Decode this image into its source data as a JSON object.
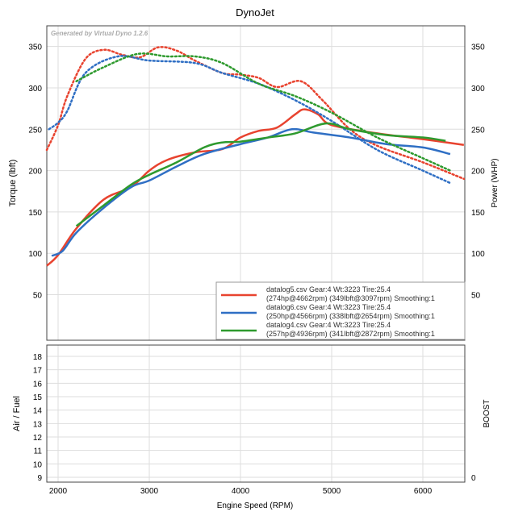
{
  "chart_data": [
    {
      "type": "line",
      "title": "DynoJet",
      "watermark": "Generated by Virtual Dyno 1.2.6",
      "xlabel": "Engine Speed (RPM)",
      "ylabel": "Torque (lbft)",
      "y2label": "Power (WHP)",
      "xlim": [
        1876,
        6460
      ],
      "ylim": [
        -5,
        375
      ],
      "xticks": [
        2000,
        3000,
        4000,
        5000,
        6000
      ],
      "yticks": [
        50,
        100,
        150,
        200,
        250,
        300,
        350
      ],
      "grid": true,
      "legend_placement": "bottom-right",
      "series": [
        {
          "name": "datalog5.csv Gear:4 Wt:3223 Tire:25.4",
          "detail": "(274hp@4662rpm) (349lbft@3097rpm) Smoothing:1",
          "color": "#e8432f",
          "power": {
            "x": [
              1876,
              2000,
              2200,
              2500,
              2800,
              3000,
              3200,
              3500,
              3800,
              4000,
              4200,
              4400,
              4600,
              4700,
              4850,
              5000,
              5500,
              6000,
              6450
            ],
            "y": [
              85,
              98,
              130,
              165,
              180,
              200,
              213,
              222,
              226,
              240,
              248,
              252,
              268,
              274,
              268,
              255,
              245,
              238,
              231
            ]
          },
          "torque": {
            "x": [
              1876,
              2000,
              2100,
              2300,
              2500,
              2700,
              2900,
              3097,
              3300,
              3500,
              3800,
              4000,
              4200,
              4400,
              4662,
              4900,
              5200,
              5500,
              6000,
              6450
            ],
            "y": [
              225,
              255,
              290,
              335,
              346,
              340,
              337,
              349,
              345,
              333,
              318,
              316,
              312,
              301,
              308,
              285,
              250,
              230,
              210,
              190
            ]
          }
        },
        {
          "name": "datalog6.csv Gear:4 Wt:3223 Tire:25.4",
          "detail": "(250hp@4566rpm) (338lbft@2654rpm) Smoothing:1",
          "color": "#2f6fc4",
          "power": {
            "x": [
              1930,
              2050,
              2200,
              2500,
              2800,
              3000,
              3300,
              3600,
              4000,
              4300,
              4566,
              4800,
              5200,
              5600,
              6000,
              6300
            ],
            "y": [
              97,
              103,
              125,
              155,
              180,
              188,
              205,
              220,
              232,
              240,
              250,
              246,
              240,
              232,
              228,
              220
            ]
          },
          "torque": {
            "x": [
              1900,
              2000,
              2100,
              2300,
              2654,
              3000,
              3500,
              3800,
              4200,
              4600,
              5000,
              5500,
              6000,
              6300
            ],
            "y": [
              250,
              258,
              272,
              318,
              338,
              333,
              330,
              318,
              305,
              285,
              260,
              225,
              200,
              185
            ]
          }
        },
        {
          "name": "datalog4.csv Gear:4 Wt:3223 Tire:25.4",
          "detail": "(257hp@4936rpm) (341lbft@2872rpm) Smoothing:1",
          "color": "#2e9a2e",
          "power": {
            "x": [
              2200,
              2500,
              2800,
              3000,
              3300,
              3600,
              3800,
              4000,
              4300,
              4600,
              4936,
              5200,
              5600,
              6000,
              6250
            ],
            "y": [
              133,
              158,
              183,
              195,
              210,
              228,
              234,
              235,
              240,
              245,
              257,
              250,
              243,
              240,
              236
            ]
          },
          "torque": {
            "x": [
              2200,
              2500,
              2872,
              3200,
              3500,
              3800,
              4200,
              4600,
              5000,
              5500,
              6000,
              6300
            ],
            "y": [
              308,
              325,
              341,
              338,
              338,
              330,
              305,
              290,
              270,
              240,
              215,
              200
            ]
          }
        }
      ]
    },
    {
      "type": "line",
      "ylabel": "Air / Fuel",
      "y2label": "BOOST",
      "ylim": [
        8.64,
        18.84
      ],
      "yticks": [
        9,
        10,
        11,
        12,
        13,
        14,
        15,
        16,
        17,
        18
      ],
      "y2ticks": [
        0
      ],
      "xticks": [
        2000,
        3000,
        4000,
        5000,
        6000
      ],
      "series": []
    }
  ]
}
